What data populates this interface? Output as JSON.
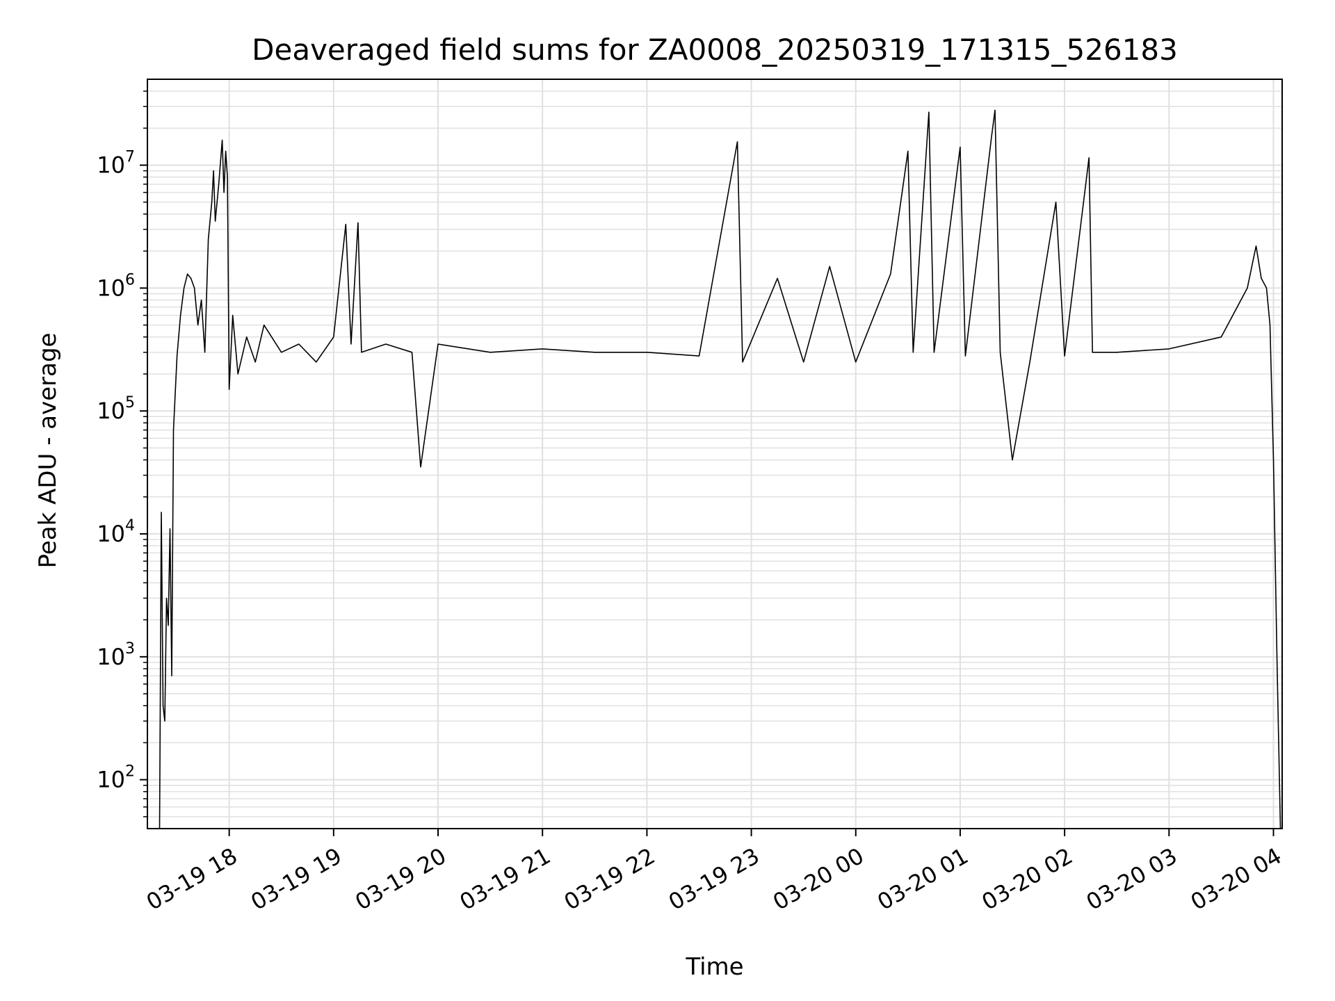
{
  "chart_data": {
    "type": "line",
    "title": "Deaveraged field sums for ZA0008_20250319_171315_526183",
    "xlabel": "Time",
    "ylabel": "Peak ADU - average",
    "yscale": "log",
    "xlim": [
      "2025-03-19 17:13",
      "2025-03-20 04:05"
    ],
    "ylim": [
      40,
      50000000
    ],
    "grid": true,
    "line_color": "#000000",
    "grid_color": "#e0e0e0",
    "x_ticks": [
      {
        "value": "2025-03-19 18:00",
        "label": "03-19 18"
      },
      {
        "value": "2025-03-19 19:00",
        "label": "03-19 19"
      },
      {
        "value": "2025-03-19 20:00",
        "label": "03-19 20"
      },
      {
        "value": "2025-03-19 21:00",
        "label": "03-19 21"
      },
      {
        "value": "2025-03-19 22:00",
        "label": "03-19 22"
      },
      {
        "value": "2025-03-19 23:00",
        "label": "03-19 23"
      },
      {
        "value": "2025-03-20 00:00",
        "label": "03-20 00"
      },
      {
        "value": "2025-03-20 01:00",
        "label": "03-20 01"
      },
      {
        "value": "2025-03-20 02:00",
        "label": "03-20 02"
      },
      {
        "value": "2025-03-20 03:00",
        "label": "03-20 03"
      },
      {
        "value": "2025-03-20 04:00",
        "label": "03-20 04"
      }
    ],
    "y_ticks": [
      {
        "value": 100,
        "base": "10",
        "exp": "2"
      },
      {
        "value": 1000,
        "base": "10",
        "exp": "3"
      },
      {
        "value": 10000,
        "base": "10",
        "exp": "4"
      },
      {
        "value": 100000,
        "base": "10",
        "exp": "5"
      },
      {
        "value": 1000000,
        "base": "10",
        "exp": "6"
      },
      {
        "value": 10000000,
        "base": "10",
        "exp": "7"
      }
    ],
    "series": [
      {
        "points": [
          [
            "2025-03-19 17:20",
            40
          ],
          [
            "2025-03-19 17:21",
            15000
          ],
          [
            "2025-03-19 17:22",
            400
          ],
          [
            "2025-03-19 17:23",
            300
          ],
          [
            "2025-03-19 17:24",
            3000
          ],
          [
            "2025-03-19 17:25",
            1800
          ],
          [
            "2025-03-19 17:26",
            11000
          ],
          [
            "2025-03-19 17:27",
            700
          ],
          [
            "2025-03-19 17:28",
            70000
          ],
          [
            "2025-03-19 17:30",
            280000
          ],
          [
            "2025-03-19 17:32",
            600000
          ],
          [
            "2025-03-19 17:34",
            1000000
          ],
          [
            "2025-03-19 17:36",
            1300000
          ],
          [
            "2025-03-19 17:38",
            1200000
          ],
          [
            "2025-03-19 17:40",
            1000000
          ],
          [
            "2025-03-19 17:42",
            500000
          ],
          [
            "2025-03-19 17:44",
            800000
          ],
          [
            "2025-03-19 17:46",
            300000
          ],
          [
            "2025-03-19 17:48",
            2500000
          ],
          [
            "2025-03-19 17:50",
            5000000
          ],
          [
            "2025-03-19 17:51",
            9000000
          ],
          [
            "2025-03-19 17:52",
            3500000
          ],
          [
            "2025-03-19 17:54",
            7000000
          ],
          [
            "2025-03-19 17:56",
            16000000
          ],
          [
            "2025-03-19 17:57",
            6000000
          ],
          [
            "2025-03-19 17:58",
            13000000
          ],
          [
            "2025-03-19 17:59",
            8000000
          ],
          [
            "2025-03-19 18:00",
            150000
          ],
          [
            "2025-03-19 18:02",
            600000
          ],
          [
            "2025-03-19 18:05",
            200000
          ],
          [
            "2025-03-19 18:10",
            400000
          ],
          [
            "2025-03-19 18:15",
            250000
          ],
          [
            "2025-03-19 18:20",
            500000
          ],
          [
            "2025-03-19 18:30",
            300000
          ],
          [
            "2025-03-19 18:40",
            350000
          ],
          [
            "2025-03-19 18:50",
            250000
          ],
          [
            "2025-03-19 19:00",
            400000
          ],
          [
            "2025-03-19 19:07",
            3300000
          ],
          [
            "2025-03-19 19:10",
            350000
          ],
          [
            "2025-03-19 19:14",
            3400000
          ],
          [
            "2025-03-19 19:16",
            300000
          ],
          [
            "2025-03-19 19:30",
            350000
          ],
          [
            "2025-03-19 19:45",
            300000
          ],
          [
            "2025-03-19 19:50",
            35000
          ],
          [
            "2025-03-19 20:00",
            350000
          ],
          [
            "2025-03-19 20:30",
            300000
          ],
          [
            "2025-03-19 21:00",
            320000
          ],
          [
            "2025-03-19 21:30",
            300000
          ],
          [
            "2025-03-19 22:00",
            300000
          ],
          [
            "2025-03-19 22:30",
            280000
          ],
          [
            "2025-03-19 22:52",
            15500000
          ],
          [
            "2025-03-19 22:55",
            250000
          ],
          [
            "2025-03-19 23:15",
            1200000
          ],
          [
            "2025-03-19 23:30",
            250000
          ],
          [
            "2025-03-19 23:45",
            1500000
          ],
          [
            "2025-03-20 00:00",
            250000
          ],
          [
            "2025-03-20 00:20",
            1300000
          ],
          [
            "2025-03-20 00:30",
            13000000
          ],
          [
            "2025-03-20 00:33",
            300000
          ],
          [
            "2025-03-20 00:42",
            27000000
          ],
          [
            "2025-03-20 00:45",
            300000
          ],
          [
            "2025-03-20 01:00",
            14000000
          ],
          [
            "2025-03-20 01:03",
            280000
          ],
          [
            "2025-03-20 01:18",
            17000000
          ],
          [
            "2025-03-20 01:20",
            28000000
          ],
          [
            "2025-03-20 01:23",
            300000
          ],
          [
            "2025-03-20 01:30",
            40000
          ],
          [
            "2025-03-20 01:40",
            250000
          ],
          [
            "2025-03-20 01:55",
            5000000
          ],
          [
            "2025-03-20 02:00",
            280000
          ],
          [
            "2025-03-20 02:14",
            11500000
          ],
          [
            "2025-03-20 02:16",
            300000
          ],
          [
            "2025-03-20 02:30",
            300000
          ],
          [
            "2025-03-20 03:00",
            320000
          ],
          [
            "2025-03-20 03:30",
            400000
          ],
          [
            "2025-03-20 03:45",
            1000000
          ],
          [
            "2025-03-20 03:50",
            2200000
          ],
          [
            "2025-03-20 03:53",
            1200000
          ],
          [
            "2025-03-20 03:56",
            1000000
          ],
          [
            "2025-03-20 03:58",
            500000
          ],
          [
            "2025-03-20 04:00",
            40000
          ],
          [
            "2025-03-20 04:02",
            1000
          ],
          [
            "2025-03-20 04:04",
            40
          ]
        ]
      }
    ]
  }
}
